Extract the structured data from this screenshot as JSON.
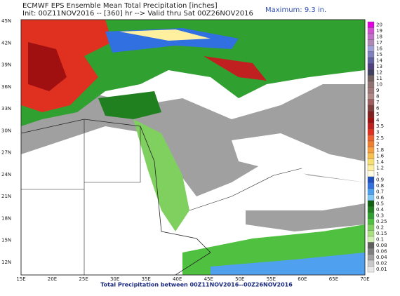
{
  "header": {
    "title": "ECMWF EPS Ensemble Mean Total Precipitation [inches]",
    "subtitle": "Init: 00Z11NOV2016 -- [360] hr --> Valid thru Sat 00Z26NOV2016",
    "maximum": "Maximum: 9.3 in."
  },
  "lat_labels": [
    "45N",
    "42N",
    "39N",
    "36N",
    "33N",
    "30N",
    "27N",
    "24N",
    "21N",
    "18N",
    "15N",
    "12N"
  ],
  "lon_labels": [
    "15E",
    "20E",
    "25E",
    "30E",
    "35E",
    "40E",
    "45E",
    "50E",
    "55E",
    "60E",
    "65E",
    "70E"
  ],
  "colorbar": [
    {
      "label": "20",
      "color": "#e000e0"
    },
    {
      "label": "19",
      "color": "#d050d0"
    },
    {
      "label": "18",
      "color": "#c070c8"
    },
    {
      "label": "17",
      "color": "#b088b8"
    },
    {
      "label": "16",
      "color": "#a0a0d8"
    },
    {
      "label": "15",
      "color": "#8080c0"
    },
    {
      "label": "14",
      "color": "#6060a0"
    },
    {
      "label": "13",
      "color": "#504080"
    },
    {
      "label": "12",
      "color": "#404060"
    },
    {
      "label": "11",
      "color": "#706060"
    },
    {
      "label": "10",
      "color": "#907070"
    },
    {
      "label": "9",
      "color": "#a07878"
    },
    {
      "label": "8",
      "color": "#b08888"
    },
    {
      "label": "7",
      "color": "#a06060"
    },
    {
      "label": "6",
      "color": "#804040"
    },
    {
      "label": "5",
      "color": "#802020"
    },
    {
      "label": "4",
      "color": "#a01010"
    },
    {
      "label": "3.5",
      "color": "#c02020"
    },
    {
      "label": "3",
      "color": "#e03020"
    },
    {
      "label": "2.5",
      "color": "#f06030"
    },
    {
      "label": "2",
      "color": "#f08030"
    },
    {
      "label": "1.8",
      "color": "#f8a040"
    },
    {
      "label": "1.6",
      "color": "#f8c050"
    },
    {
      "label": "1.4",
      "color": "#f8e070"
    },
    {
      "label": "1.2",
      "color": "#fff0a0"
    },
    {
      "label": "1",
      "color": "#fffbe0"
    },
    {
      "label": "0.9",
      "color": "#2050c0"
    },
    {
      "label": "0.8",
      "color": "#3070e0"
    },
    {
      "label": "0.7",
      "color": "#50a0f0"
    },
    {
      "label": "0.6",
      "color": "#80c8f8"
    },
    {
      "label": "0.5",
      "color": "#106010"
    },
    {
      "label": "0.4",
      "color": "#208020"
    },
    {
      "label": "0.3",
      "color": "#30a030"
    },
    {
      "label": "0.25",
      "color": "#50c040"
    },
    {
      "label": "0.2",
      "color": "#80d060"
    },
    {
      "label": "0.15",
      "color": "#a8e080"
    },
    {
      "label": "0.1",
      "color": "#d0f0b0"
    },
    {
      "label": "0.08",
      "color": "#606060"
    },
    {
      "label": "0.06",
      "color": "#808080"
    },
    {
      "label": "0.04",
      "color": "#a0a0a0"
    },
    {
      "label": "0.02",
      "color": "#c8c8c8"
    },
    {
      "label": "0.01",
      "color": "#e8e8e8"
    }
  ],
  "footer": "Total Precipitation between 00Z11NOV2016--00Z26NOV2016"
}
